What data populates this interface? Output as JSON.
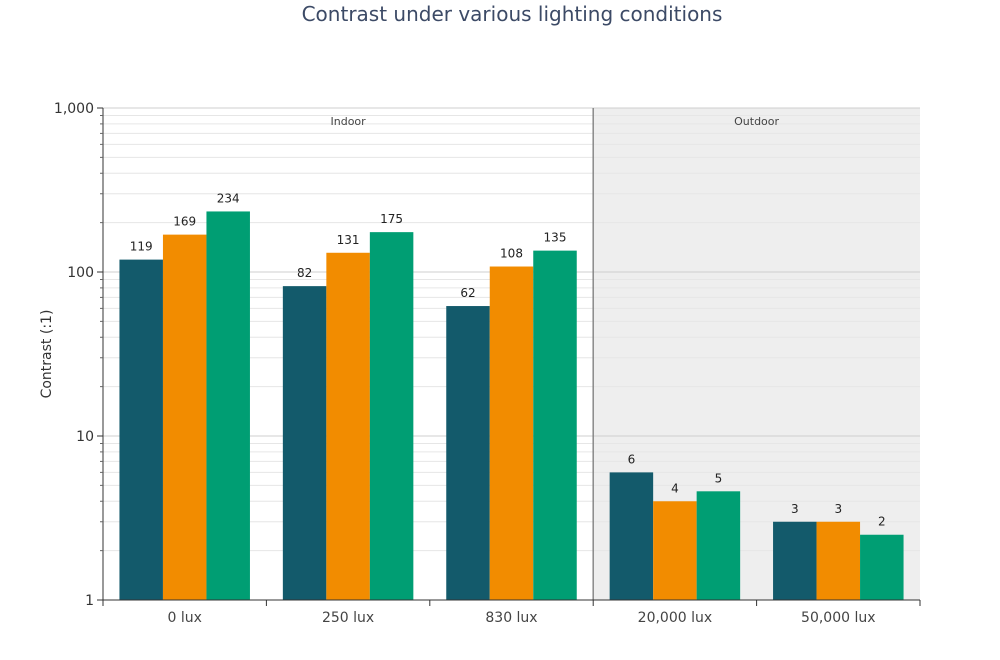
{
  "chart_data": {
    "type": "bar",
    "title": "Contrast under various lighting conditions",
    "ylabel": "Contrast (:1)",
    "xlabel": "",
    "yscale": "log",
    "ylim": [
      1,
      1000
    ],
    "yticks": [
      {
        "value": 1,
        "label": "1"
      },
      {
        "value": 10,
        "label": "10"
      },
      {
        "value": 100,
        "label": "100"
      },
      {
        "value": 1000,
        "label": "1,000"
      }
    ],
    "categories": [
      "0 lux",
      "250 lux",
      "830 lux",
      "20,000 lux",
      "50,000 lux"
    ],
    "series": [
      {
        "color": "#135a6b",
        "values": [
          119,
          82,
          62,
          6,
          3
        ],
        "labels": [
          "119",
          "82",
          "62",
          "6",
          "3"
        ]
      },
      {
        "color": "#f28c00",
        "values": [
          169,
          131,
          108,
          4,
          3
        ],
        "labels": [
          "169",
          "131",
          "108",
          "4",
          "3"
        ]
      },
      {
        "color": "#009e73",
        "values": [
          234,
          175,
          135,
          4.6,
          2.5
        ],
        "labels": [
          "234",
          "175",
          "135",
          "5",
          "2"
        ]
      }
    ],
    "regions": [
      {
        "label": "Indoor",
        "categories": [
          "0 lux",
          "250 lux",
          "830 lux"
        ],
        "shaded": false
      },
      {
        "label": "Outdoor",
        "categories": [
          "20,000 lux",
          "50,000 lux"
        ],
        "shaded": true,
        "color": "#eeeeee"
      }
    ],
    "grid": true,
    "legend": "none"
  }
}
